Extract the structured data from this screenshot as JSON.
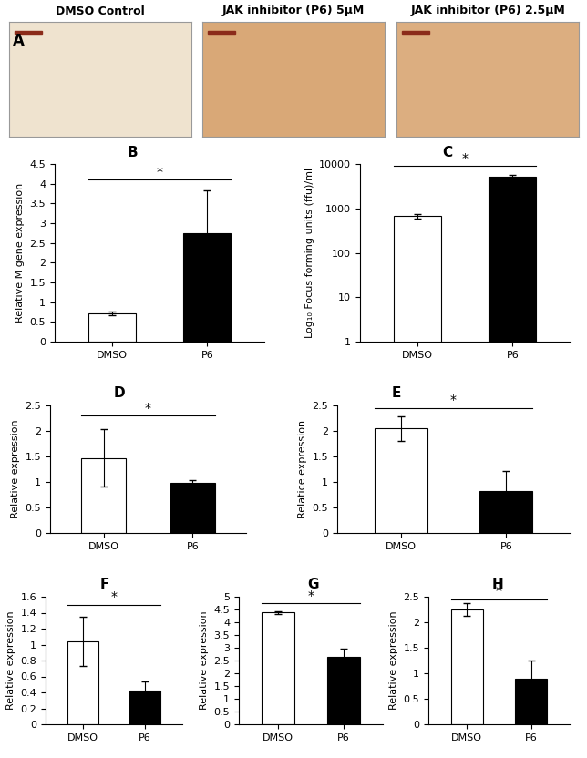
{
  "panel_a": {
    "label": "A",
    "titles": [
      "DMSO Control",
      "JAK inhibitor (P6) 5μM",
      "JAK inhibitor (P6) 2.5μM"
    ]
  },
  "chart_data": [
    {
      "type": "bar",
      "label": "B",
      "y_label": "Relative M gene expression",
      "categories": [
        "DMSO",
        "P6"
      ],
      "values": [
        0.72,
        2.75
      ],
      "errors": [
        0.05,
        1.08
      ],
      "colors": [
        "#ffffff",
        "#000000"
      ],
      "ylim": [
        0,
        4.5
      ],
      "yticks": [
        0,
        0.5,
        1,
        1.5,
        2,
        2.5,
        3,
        3.5,
        4,
        4.5
      ],
      "significance": {
        "label": "*",
        "y": 4.1
      }
    },
    {
      "type": "bar",
      "label": "C",
      "y_label": "Log₁₀ Focus forming units (ffu)/ml",
      "log": "y",
      "categories": [
        "DMSO",
        "P6"
      ],
      "values": [
        680,
        5200
      ],
      "errors": [
        80,
        500
      ],
      "colors": [
        "#ffffff",
        "#000000"
      ],
      "ylim": [
        1,
        10000
      ],
      "yticks": [
        1,
        10,
        100,
        1000,
        10000
      ],
      "significance": {
        "label": "*",
        "y": 9000
      }
    },
    {
      "type": "bar",
      "label": "D",
      "y_label": "Relative expression",
      "categories": [
        "DMSO",
        "P6"
      ],
      "values": [
        1.47,
        0.99
      ],
      "errors": [
        0.56,
        0.05
      ],
      "colors": [
        "#ffffff",
        "#000000"
      ],
      "ylim": [
        0,
        2.5
      ],
      "yticks": [
        0,
        0.5,
        1,
        1.5,
        2,
        2.5
      ],
      "significance": {
        "label": "*",
        "y": 2.3
      }
    },
    {
      "type": "bar",
      "label": "E",
      "y_label": "Relatice expression",
      "categories": [
        "DMSO",
        "P6"
      ],
      "values": [
        2.05,
        0.82
      ],
      "errors": [
        0.24,
        0.4
      ],
      "colors": [
        "#ffffff",
        "#000000"
      ],
      "ylim": [
        0,
        2.5
      ],
      "yticks": [
        0,
        0.5,
        1,
        1.5,
        2,
        2.5
      ],
      "significance": {
        "label": "*",
        "y": 2.45
      }
    },
    {
      "type": "bar",
      "label": "F",
      "y_label": "Relative expression",
      "categories": [
        "DMSO",
        "P6"
      ],
      "values": [
        1.04,
        0.42
      ],
      "errors": [
        0.31,
        0.12
      ],
      "colors": [
        "#ffffff",
        "#000000"
      ],
      "ylim": [
        0,
        1.6
      ],
      "yticks": [
        0,
        0.2,
        0.4,
        0.6,
        0.8,
        1,
        1.2,
        1.4,
        1.6
      ],
      "significance": {
        "label": "*",
        "y": 1.5
      }
    },
    {
      "type": "bar",
      "label": "G",
      "y_label": "Relative expression",
      "categories": [
        "DMSO",
        "P6"
      ],
      "values": [
        4.38,
        2.65
      ],
      "errors": [
        0.05,
        0.3
      ],
      "colors": [
        "#ffffff",
        "#000000"
      ],
      "ylim": [
        0,
        5
      ],
      "yticks": [
        0,
        0.5,
        1,
        1.5,
        2,
        2.5,
        3,
        3.5,
        4,
        4.5,
        5
      ],
      "significance": {
        "label": "*",
        "y": 4.75
      }
    },
    {
      "type": "bar",
      "label": "H",
      "y_label": "Relative expression",
      "categories": [
        "DMSO",
        "P6"
      ],
      "values": [
        2.25,
        0.9
      ],
      "errors": [
        0.12,
        0.35
      ],
      "colors": [
        "#ffffff",
        "#000000"
      ],
      "ylim": [
        0,
        2.5
      ],
      "yticks": [
        0,
        0.5,
        1,
        1.5,
        2,
        2.5
      ],
      "significance": {
        "label": "*",
        "y": 2.45
      }
    }
  ]
}
